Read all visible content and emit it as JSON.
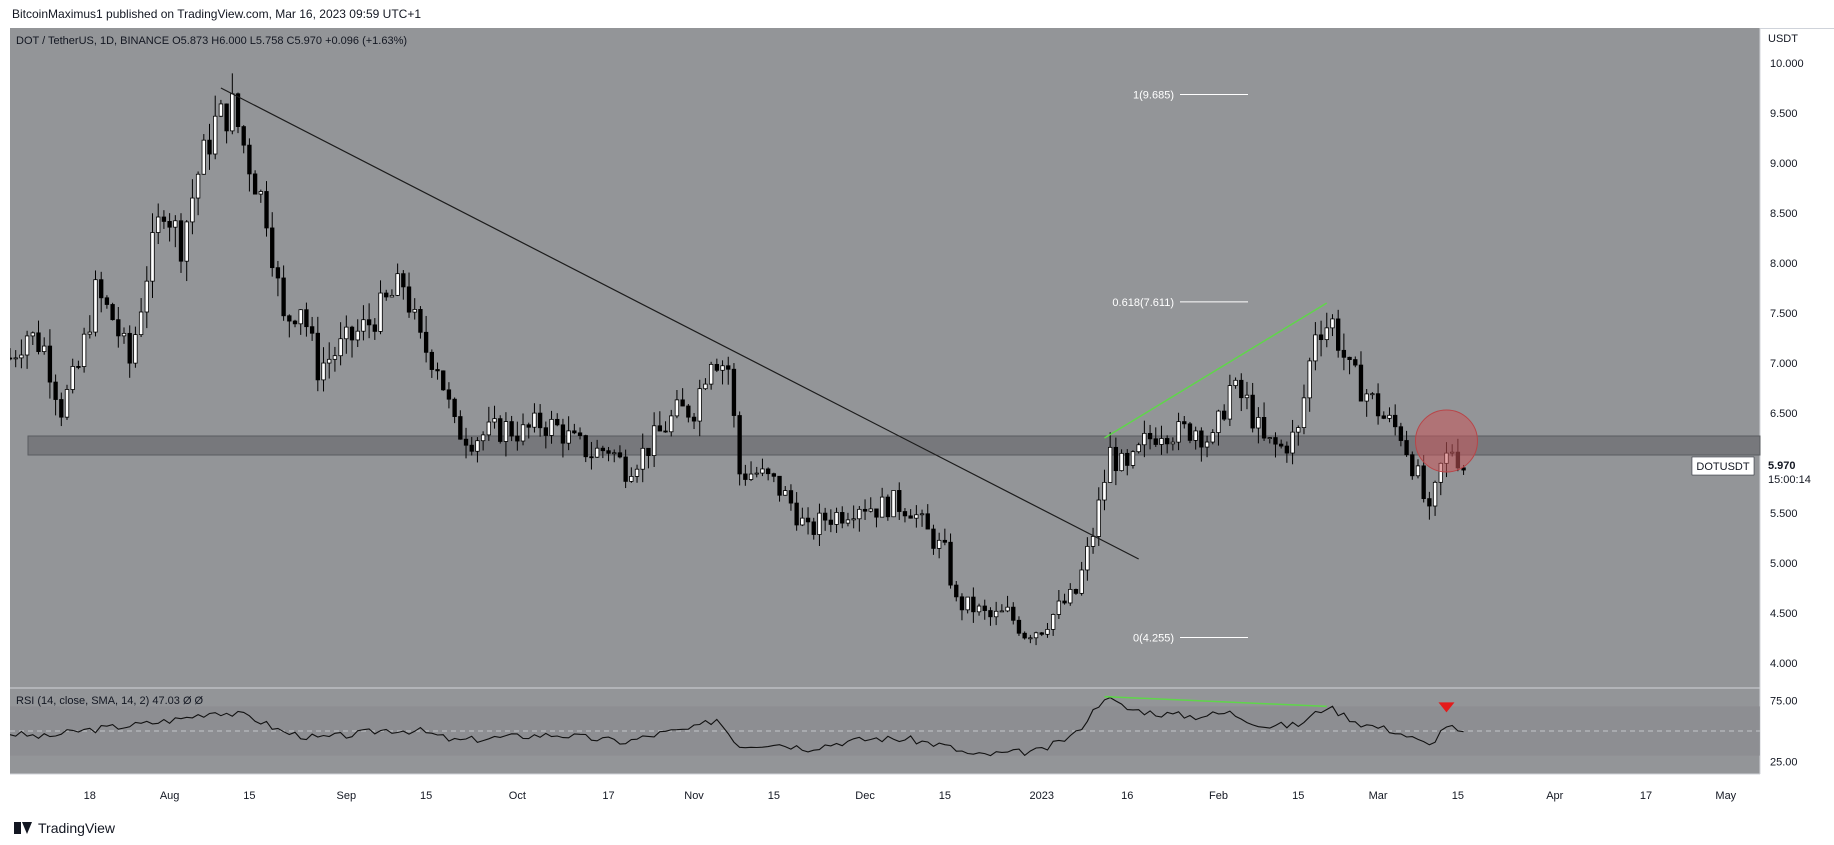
{
  "header": {
    "published": "BitcoinMaximus1 published on TradingView.com, Mar 16, 2023 09:59 UTC+1"
  },
  "footer": {
    "brand": "TradingView"
  },
  "colors": {
    "panel": "#939598",
    "up": "#ffffff",
    "down": "#000000",
    "support": "#6d6f73",
    "green": "#5fd64a",
    "red_circle": "#c9585b",
    "red_marker": "#e41b1b"
  },
  "chart_data": {
    "type": "candlestick",
    "symbol_bar": {
      "name": "DOT / TetherUS, 1D, BINANCE",
      "o_label": "O",
      "o": "5.873",
      "h_label": "H",
      "h": "6.000",
      "l_label": "L",
      "l": "5.758",
      "c_label": "C",
      "c": "5.970",
      "change": "+0.096 (+1.63%)"
    },
    "price_axis": {
      "unit": "USDT",
      "ylim": [
        3.75,
        10.35
      ],
      "ticks": [
        "10.000",
        "9.500",
        "9.000",
        "8.500",
        "8.000",
        "7.500",
        "7.000",
        "6.500",
        "6.000",
        "5.500",
        "5.000",
        "4.500",
        "4.000"
      ]
    },
    "last_price": {
      "symbol": "DOTUSDT",
      "value": "5.970",
      "countdown": "15:00:14"
    },
    "fib_levels": [
      {
        "label": "1(9.685)",
        "value": 9.685
      },
      {
        "label": "0.618(7.611)",
        "value": 7.611
      },
      {
        "label": "0(4.255)",
        "value": 4.255
      }
    ],
    "support_zone": {
      "low": 6.08,
      "high": 6.27
    },
    "trendline": {
      "from": {
        "date": "2022-08-10",
        "value": 9.75
      },
      "to": {
        "date": "2023-01-18",
        "value": 5.04
      }
    },
    "green_divergence_line": {
      "from": {
        "date": "2023-01-12",
        "value": 6.25
      },
      "to": {
        "date": "2023-02-20",
        "value": 7.6
      }
    },
    "rejection_circle": {
      "date": "2023-03-13",
      "value": 6.22
    },
    "x_axis": {
      "start": "2022-07-04",
      "end": "2023-05-07",
      "ticks": [
        {
          "label": "18",
          "date": "2022-07-18"
        },
        {
          "label": "Aug",
          "date": "2022-08-01"
        },
        {
          "label": "15",
          "date": "2022-08-15"
        },
        {
          "label": "Sep",
          "date": "2022-09-01"
        },
        {
          "label": "15",
          "date": "2022-09-15"
        },
        {
          "label": "Oct",
          "date": "2022-10-01"
        },
        {
          "label": "17",
          "date": "2022-10-17"
        },
        {
          "label": "Nov",
          "date": "2022-11-01"
        },
        {
          "label": "15",
          "date": "2022-11-15"
        },
        {
          "label": "Dec",
          "date": "2022-12-01"
        },
        {
          "label": "15",
          "date": "2022-12-15"
        },
        {
          "label": "2023",
          "date": "2023-01-01"
        },
        {
          "label": "16",
          "date": "2023-01-16"
        },
        {
          "label": "Feb",
          "date": "2023-02-01"
        },
        {
          "label": "15",
          "date": "2023-02-15"
        },
        {
          "label": "Mar",
          "date": "2023-03-01"
        },
        {
          "label": "15",
          "date": "2023-03-15"
        },
        {
          "label": "Apr",
          "date": "2023-04-01"
        },
        {
          "label": "17",
          "date": "2023-04-17"
        },
        {
          "label": "May",
          "date": "2023-05-01"
        }
      ]
    },
    "closes": [
      {
        "date": "2022-07-04",
        "value": 7.05
      },
      {
        "date": "2022-07-07",
        "value": 7.3
      },
      {
        "date": "2022-07-10",
        "value": 7.15
      },
      {
        "date": "2022-07-13",
        "value": 6.55
      },
      {
        "date": "2022-07-16",
        "value": 6.95
      },
      {
        "date": "2022-07-19",
        "value": 7.7
      },
      {
        "date": "2022-07-22",
        "value": 7.45
      },
      {
        "date": "2022-07-25",
        "value": 7.0
      },
      {
        "date": "2022-07-28",
        "value": 7.9
      },
      {
        "date": "2022-07-31",
        "value": 8.6
      },
      {
        "date": "2022-08-03",
        "value": 8.2
      },
      {
        "date": "2022-08-06",
        "value": 8.9
      },
      {
        "date": "2022-08-09",
        "value": 9.4
      },
      {
        "date": "2022-08-12",
        "value": 9.55
      },
      {
        "date": "2022-08-15",
        "value": 9.0
      },
      {
        "date": "2022-08-18",
        "value": 8.5
      },
      {
        "date": "2022-08-21",
        "value": 7.4
      },
      {
        "date": "2022-08-24",
        "value": 7.6
      },
      {
        "date": "2022-08-27",
        "value": 6.95
      },
      {
        "date": "2022-08-30",
        "value": 7.1
      },
      {
        "date": "2022-09-02",
        "value": 7.25
      },
      {
        "date": "2022-09-05",
        "value": 7.4
      },
      {
        "date": "2022-09-08",
        "value": 7.6
      },
      {
        "date": "2022-09-11",
        "value": 7.8
      },
      {
        "date": "2022-09-14",
        "value": 7.2
      },
      {
        "date": "2022-09-17",
        "value": 7.0
      },
      {
        "date": "2022-09-20",
        "value": 6.35
      },
      {
        "date": "2022-09-23",
        "value": 6.25
      },
      {
        "date": "2022-09-26",
        "value": 6.3
      },
      {
        "date": "2022-09-29",
        "value": 6.35
      },
      {
        "date": "2022-10-02",
        "value": 6.3
      },
      {
        "date": "2022-10-05",
        "value": 6.4
      },
      {
        "date": "2022-10-08",
        "value": 6.35
      },
      {
        "date": "2022-10-11",
        "value": 6.2
      },
      {
        "date": "2022-10-14",
        "value": 6.1
      },
      {
        "date": "2022-10-17",
        "value": 6.15
      },
      {
        "date": "2022-10-20",
        "value": 5.95
      },
      {
        "date": "2022-10-23",
        "value": 6.1
      },
      {
        "date": "2022-10-26",
        "value": 6.3
      },
      {
        "date": "2022-10-29",
        "value": 6.5
      },
      {
        "date": "2022-11-01",
        "value": 6.55
      },
      {
        "date": "2022-11-04",
        "value": 7.1
      },
      {
        "date": "2022-11-07",
        "value": 6.95
      },
      {
        "date": "2022-11-09",
        "value": 5.9
      },
      {
        "date": "2022-11-12",
        "value": 5.9
      },
      {
        "date": "2022-11-15",
        "value": 5.8
      },
      {
        "date": "2022-11-18",
        "value": 5.6
      },
      {
        "date": "2022-11-21",
        "value": 5.3
      },
      {
        "date": "2022-11-24",
        "value": 5.45
      },
      {
        "date": "2022-11-27",
        "value": 5.5
      },
      {
        "date": "2022-11-30",
        "value": 5.6
      },
      {
        "date": "2022-12-03",
        "value": 5.55
      },
      {
        "date": "2022-12-06",
        "value": 5.6
      },
      {
        "date": "2022-12-09",
        "value": 5.55
      },
      {
        "date": "2022-12-12",
        "value": 5.3
      },
      {
        "date": "2022-12-15",
        "value": 5.1
      },
      {
        "date": "2022-12-17",
        "value": 4.6
      },
      {
        "date": "2022-12-20",
        "value": 4.55
      },
      {
        "date": "2022-12-23",
        "value": 4.45
      },
      {
        "date": "2022-12-26",
        "value": 4.5
      },
      {
        "date": "2022-12-29",
        "value": 4.3
      },
      {
        "date": "2023-01-01",
        "value": 4.35
      },
      {
        "date": "2023-01-04",
        "value": 4.55
      },
      {
        "date": "2023-01-07",
        "value": 4.7
      },
      {
        "date": "2023-01-10",
        "value": 5.3
      },
      {
        "date": "2023-01-13",
        "value": 6.1
      },
      {
        "date": "2023-01-16",
        "value": 5.9
      },
      {
        "date": "2023-01-19",
        "value": 6.2
      },
      {
        "date": "2023-01-22",
        "value": 6.35
      },
      {
        "date": "2023-01-25",
        "value": 6.3
      },
      {
        "date": "2023-01-28",
        "value": 6.35
      },
      {
        "date": "2023-01-31",
        "value": 6.2
      },
      {
        "date": "2023-02-03",
        "value": 6.75
      },
      {
        "date": "2023-02-06",
        "value": 6.6
      },
      {
        "date": "2023-02-09",
        "value": 6.2
      },
      {
        "date": "2023-02-12",
        "value": 6.15
      },
      {
        "date": "2023-02-15",
        "value": 6.3
      },
      {
        "date": "2023-02-18",
        "value": 7.35
      },
      {
        "date": "2023-02-21",
        "value": 7.4
      },
      {
        "date": "2023-02-24",
        "value": 6.9
      },
      {
        "date": "2023-02-27",
        "value": 6.7
      },
      {
        "date": "2023-03-02",
        "value": 6.45
      },
      {
        "date": "2023-03-05",
        "value": 6.3
      },
      {
        "date": "2023-03-08",
        "value": 5.85
      },
      {
        "date": "2023-03-10",
        "value": 5.45
      },
      {
        "date": "2023-03-12",
        "value": 5.95
      },
      {
        "date": "2023-03-14",
        "value": 6.15
      },
      {
        "date": "2023-03-16",
        "value": 5.97
      }
    ],
    "rsi": {
      "label": "RSI (14, close, SMA, 14, 2)",
      "value": "47.03",
      "extra": "Ø Ø",
      "ylim": [
        15,
        85
      ],
      "ticks": [
        "75.00",
        "25.00"
      ],
      "band": [
        30,
        70
      ],
      "midline": 50,
      "divergence_line": {
        "from": {
          "date": "2023-01-12",
          "value": 78
        },
        "to": {
          "date": "2023-02-20",
          "value": 70
        }
      },
      "bearish_marker": {
        "date": "2023-03-13",
        "value": 70
      },
      "values": [
        {
          "date": "2022-07-04",
          "value": 48
        },
        {
          "date": "2022-07-10",
          "value": 45
        },
        {
          "date": "2022-07-16",
          "value": 50
        },
        {
          "date": "2022-07-22",
          "value": 53
        },
        {
          "date": "2022-07-28",
          "value": 56
        },
        {
          "date": "2022-08-03",
          "value": 60
        },
        {
          "date": "2022-08-09",
          "value": 66
        },
        {
          "date": "2022-08-15",
          "value": 62
        },
        {
          "date": "2022-08-21",
          "value": 49
        },
        {
          "date": "2022-08-27",
          "value": 44
        },
        {
          "date": "2022-09-02",
          "value": 47
        },
        {
          "date": "2022-09-08",
          "value": 51
        },
        {
          "date": "2022-09-14",
          "value": 50
        },
        {
          "date": "2022-09-20",
          "value": 42
        },
        {
          "date": "2022-09-26",
          "value": 44
        },
        {
          "date": "2022-10-02",
          "value": 46
        },
        {
          "date": "2022-10-08",
          "value": 47
        },
        {
          "date": "2022-10-14",
          "value": 44
        },
        {
          "date": "2022-10-20",
          "value": 41
        },
        {
          "date": "2022-10-26",
          "value": 48
        },
        {
          "date": "2022-11-01",
          "value": 52
        },
        {
          "date": "2022-11-05",
          "value": 60
        },
        {
          "date": "2022-11-09",
          "value": 38
        },
        {
          "date": "2022-11-15",
          "value": 40
        },
        {
          "date": "2022-11-21",
          "value": 36
        },
        {
          "date": "2022-11-27",
          "value": 41
        },
        {
          "date": "2022-12-03",
          "value": 44
        },
        {
          "date": "2022-12-09",
          "value": 43
        },
        {
          "date": "2022-12-15",
          "value": 38
        },
        {
          "date": "2022-12-20",
          "value": 30
        },
        {
          "date": "2022-12-26",
          "value": 32
        },
        {
          "date": "2023-01-01",
          "value": 34
        },
        {
          "date": "2023-01-07",
          "value": 48
        },
        {
          "date": "2023-01-12",
          "value": 78
        },
        {
          "date": "2023-01-16",
          "value": 68
        },
        {
          "date": "2023-01-22",
          "value": 64
        },
        {
          "date": "2023-01-28",
          "value": 62
        },
        {
          "date": "2023-02-03",
          "value": 65
        },
        {
          "date": "2023-02-09",
          "value": 54
        },
        {
          "date": "2023-02-15",
          "value": 55
        },
        {
          "date": "2023-02-20",
          "value": 70
        },
        {
          "date": "2023-02-26",
          "value": 56
        },
        {
          "date": "2023-03-04",
          "value": 50
        },
        {
          "date": "2023-03-10",
          "value": 38
        },
        {
          "date": "2023-03-13",
          "value": 55
        },
        {
          "date": "2023-03-16",
          "value": 47
        }
      ]
    }
  }
}
